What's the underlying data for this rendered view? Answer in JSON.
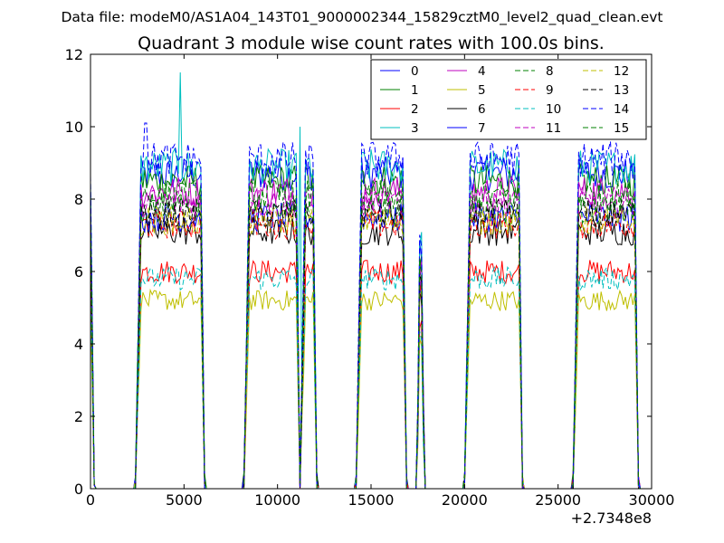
{
  "chart_data": {
    "type": "line",
    "suptitle": "Data file: modeM0/AS1A04_143T01_9000002344_15829cztM0_level2_quad_clean.evt",
    "title": "Quadrant 3 module wise count rates with 100.0s bins.",
    "xlabel": "",
    "ylabel": "",
    "xlim": [
      0,
      30000
    ],
    "ylim": [
      0,
      12
    ],
    "x_offset_label": "+2.7348e8",
    "xticks": [
      0,
      5000,
      10000,
      15000,
      20000,
      25000,
      30000
    ],
    "xtick_labels": [
      "0",
      "5000",
      "10000",
      "15000",
      "20000",
      "25000",
      "30000"
    ],
    "yticks": [
      0,
      2,
      4,
      6,
      8,
      10,
      12
    ],
    "ytick_labels": [
      "0",
      "2",
      "4",
      "6",
      "8",
      "10",
      "12"
    ],
    "grid": false,
    "legend_position": "top-right",
    "legend_columns": 4,
    "observing_windows": [
      {
        "start": 2400,
        "end": 6100
      },
      {
        "start": 8200,
        "end": 11200
      },
      {
        "start": 11200,
        "end": 12100
      },
      {
        "start": 14200,
        "end": 16900
      },
      {
        "start": 17500,
        "end": 17800
      },
      {
        "start": 20000,
        "end": 23100
      },
      {
        "start": 25800,
        "end": 29300
      }
    ],
    "spikes": [
      {
        "x": 4800,
        "series": "3",
        "value": 11.5
      },
      {
        "x": 11200,
        "series": "3",
        "value": 10.0
      },
      {
        "x": 2950,
        "series": "14",
        "value": 10.1
      }
    ],
    "series": [
      {
        "name": "0",
        "color": "#0000ff",
        "dash": "solid",
        "level": 8.7
      },
      {
        "name": "1",
        "color": "#008000",
        "dash": "solid",
        "level": 8.5
      },
      {
        "name": "2",
        "color": "#ff0000",
        "dash": "solid",
        "level": 6.0
      },
      {
        "name": "3",
        "color": "#00bfbf",
        "dash": "solid",
        "level": 8.9
      },
      {
        "name": "4",
        "color": "#bf00bf",
        "dash": "solid",
        "level": 8.2
      },
      {
        "name": "5",
        "color": "#bfbf00",
        "dash": "solid",
        "level": 5.2
      },
      {
        "name": "6",
        "color": "#000000",
        "dash": "solid",
        "level": 7.1
      },
      {
        "name": "7",
        "color": "#0000ff",
        "dash": "solid",
        "level": 7.5
      },
      {
        "name": "8",
        "color": "#008000",
        "dash": "dashed",
        "level": 7.7
      },
      {
        "name": "9",
        "color": "#ff0000",
        "dash": "dashed",
        "level": 7.3
      },
      {
        "name": "10",
        "color": "#00bfbf",
        "dash": "dashed",
        "level": 5.8
      },
      {
        "name": "11",
        "color": "#bf00bf",
        "dash": "dashed",
        "level": 7.9
      },
      {
        "name": "12",
        "color": "#bfbf00",
        "dash": "dashed",
        "level": 7.4
      },
      {
        "name": "13",
        "color": "#000000",
        "dash": "dashed",
        "level": 7.6
      },
      {
        "name": "14",
        "color": "#0000ff",
        "dash": "dashed",
        "level": 9.1
      },
      {
        "name": "15",
        "color": "#008000",
        "dash": "dashed",
        "level": 8.1
      }
    ]
  }
}
